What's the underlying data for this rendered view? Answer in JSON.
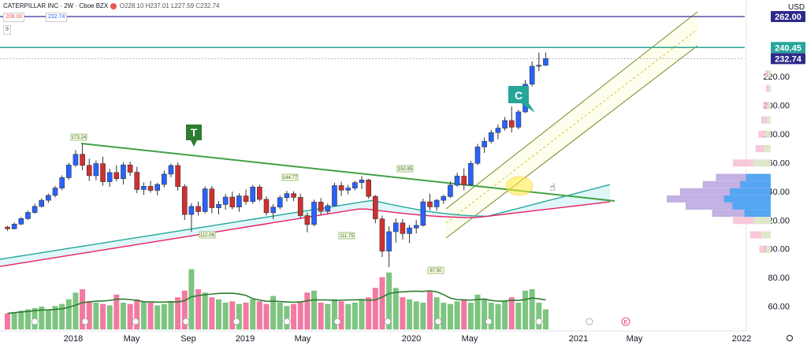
{
  "header": {
    "symbol": "CATERPILLAR INC",
    "interval": "2W",
    "exchange": "Cboe BZX",
    "ohlc": "O228.10 H237.01 L227.59 C232.74",
    "bid": "208.00",
    "ask": "232.74",
    "indicator_value": "9"
  },
  "colors": {
    "up": "#4caf50",
    "down": "#ef5350",
    "vol_up": "#66bb6a",
    "vol_down": "#f06292",
    "trend": "#43a047",
    "channel": "#6b8e23",
    "resistance": "#5b4ea8",
    "level": "#26a69a",
    "ma_fast": "#26a69a",
    "ma_slow": "#e91e63"
  },
  "chart_data": {
    "type": "candlestick",
    "currency": "USD",
    "ylim": [
      50,
      270
    ],
    "y_ticks": [
      60,
      80,
      100,
      120,
      140,
      160,
      180,
      200,
      220
    ],
    "x_tick_labels": [
      "2018",
      "May",
      "Sep",
      "2019",
      "May",
      "2020",
      "May",
      "2021",
      "May",
      "2022"
    ],
    "price_labels": [
      {
        "value": 262.0,
        "text": "262.00",
        "color": "#2e2a8a"
      },
      {
        "value": 240.45,
        "text": "240.45",
        "color": "#ffffff"
      },
      {
        "value": 232.74,
        "text": "232.74",
        "color": "#2e2a8a"
      }
    ],
    "annotations": [
      {
        "text": "173.24"
      },
      {
        "text": "112.06"
      },
      {
        "text": "144.77"
      },
      {
        "text": "111.75"
      },
      {
        "text": "150.85"
      },
      {
        "text": "87.50"
      }
    ],
    "drawing_labels": [
      {
        "text": "T"
      },
      {
        "text": "C"
      }
    ],
    "candles": [
      [
        115.4,
        116.2,
        112.8,
        114.2
      ],
      [
        114.2,
        118.6,
        113.9,
        117.5
      ],
      [
        117.5,
        122.4,
        116.8,
        121.3
      ],
      [
        121.3,
        126.9,
        120.4,
        125.6
      ],
      [
        125.6,
        131.6,
        124.8,
        129.8
      ],
      [
        129.8,
        135.4,
        128.9,
        134.1
      ],
      [
        134.1,
        138.7,
        132.2,
        137.5
      ],
      [
        137.5,
        144.1,
        136.0,
        142.6
      ],
      [
        142.6,
        151.4,
        141.1,
        149.8
      ],
      [
        149.8,
        160.2,
        148.3,
        158.6
      ],
      [
        158.6,
        169.0,
        157.4,
        166.1
      ],
      [
        166.1,
        173.2,
        155.0,
        158.4
      ],
      [
        158.4,
        163.0,
        147.5,
        151.2
      ],
      [
        151.2,
        161.8,
        148.0,
        159.6
      ],
      [
        159.6,
        164.4,
        144.2,
        147.0
      ],
      [
        147.0,
        156.0,
        143.4,
        153.4
      ],
      [
        153.4,
        158.5,
        147.2,
        149.1
      ],
      [
        149.1,
        160.5,
        145.0,
        158.7
      ],
      [
        158.7,
        161.0,
        151.0,
        153.6
      ],
      [
        153.6,
        157.3,
        139.1,
        141.6
      ],
      [
        141.6,
        146.5,
        137.7,
        143.8
      ],
      [
        143.8,
        147.6,
        139.4,
        141.0
      ],
      [
        141.0,
        146.2,
        137.5,
        145.1
      ],
      [
        145.1,
        154.8,
        143.0,
        152.3
      ],
      [
        152.3,
        159.6,
        150.1,
        158.3
      ],
      [
        158.3,
        160.5,
        140.8,
        143.6
      ],
      [
        143.6,
        145.3,
        120.4,
        124.2
      ],
      [
        124.2,
        132.1,
        112.1,
        129.8
      ],
      [
        129.8,
        133.1,
        123.4,
        126.2
      ],
      [
        126.2,
        143.8,
        125.0,
        142.0
      ],
      [
        142.0,
        144.0,
        125.0,
        128.9
      ],
      [
        128.9,
        133.6,
        124.2,
        131.2
      ],
      [
        131.2,
        138.4,
        127.5,
        136.3
      ],
      [
        136.3,
        140.1,
        127.8,
        129.4
      ],
      [
        129.4,
        138.9,
        126.0,
        137.1
      ],
      [
        137.1,
        141.5,
        131.0,
        133.2
      ],
      [
        133.2,
        144.8,
        131.6,
        143.3
      ],
      [
        143.3,
        144.8,
        133.4,
        134.7
      ],
      [
        134.7,
        136.9,
        123.5,
        125.4
      ],
      [
        125.4,
        131.4,
        121.0,
        129.3
      ],
      [
        129.3,
        137.5,
        127.8,
        135.9
      ],
      [
        135.9,
        140.6,
        133.2,
        138.7
      ],
      [
        138.7,
        140.4,
        133.5,
        136.1
      ],
      [
        136.1,
        138.4,
        121.6,
        123.4
      ],
      [
        123.4,
        125.5,
        111.8,
        117.2
      ],
      [
        117.2,
        134.5,
        116.0,
        132.8
      ],
      [
        132.8,
        135.6,
        124.0,
        126.4
      ],
      [
        126.4,
        131.8,
        124.8,
        130.3
      ],
      [
        130.3,
        146.2,
        129.6,
        144.3
      ],
      [
        144.3,
        147.0,
        137.0,
        141.1
      ],
      [
        141.1,
        144.8,
        138.2,
        142.6
      ],
      [
        142.6,
        147.6,
        141.0,
        146.4
      ],
      [
        146.4,
        150.9,
        142.0,
        148.2
      ],
      [
        148.2,
        149.1,
        135.0,
        136.8
      ],
      [
        136.8,
        137.8,
        118.1,
        121.1
      ],
      [
        121.1,
        123.5,
        94.6,
        98.7
      ],
      [
        98.7,
        115.8,
        87.5,
        112.2
      ],
      [
        112.2,
        121.5,
        104.6,
        118.3
      ],
      [
        118.3,
        121.0,
        106.8,
        110.9
      ],
      [
        110.9,
        116.9,
        104.3,
        114.8
      ],
      [
        114.8,
        120.4,
        111.0,
        116.6
      ],
      [
        116.6,
        135.1,
        115.8,
        133.0
      ],
      [
        133.0,
        138.6,
        127.2,
        129.5
      ],
      [
        129.5,
        135.0,
        126.7,
        134.1
      ],
      [
        134.1,
        138.0,
        131.6,
        136.7
      ],
      [
        136.7,
        147.2,
        135.7,
        144.6
      ],
      [
        144.6,
        153.2,
        143.5,
        150.9
      ],
      [
        150.9,
        156.3,
        141.0,
        144.8
      ],
      [
        144.8,
        161.5,
        144.1,
        159.8
      ],
      [
        159.8,
        173.4,
        158.6,
        171.2
      ],
      [
        171.2,
        177.8,
        167.0,
        175.1
      ],
      [
        175.1,
        183.0,
        173.8,
        181.2
      ],
      [
        181.2,
        186.8,
        176.5,
        184.3
      ],
      [
        184.3,
        192.1,
        182.5,
        189.6
      ],
      [
        189.6,
        199.4,
        181.3,
        185.0
      ],
      [
        185.0,
        197.0,
        183.5,
        195.6
      ],
      [
        195.6,
        217.8,
        194.8,
        214.9
      ],
      [
        214.9,
        230.8,
        213.3,
        227.4
      ],
      [
        227.4,
        237.0,
        224.0,
        228.1
      ],
      [
        228.1,
        237.0,
        227.6,
        232.7
      ]
    ],
    "volume_range": [
      0,
      100
    ]
  },
  "toolbar": {
    "settings_label": "E"
  }
}
